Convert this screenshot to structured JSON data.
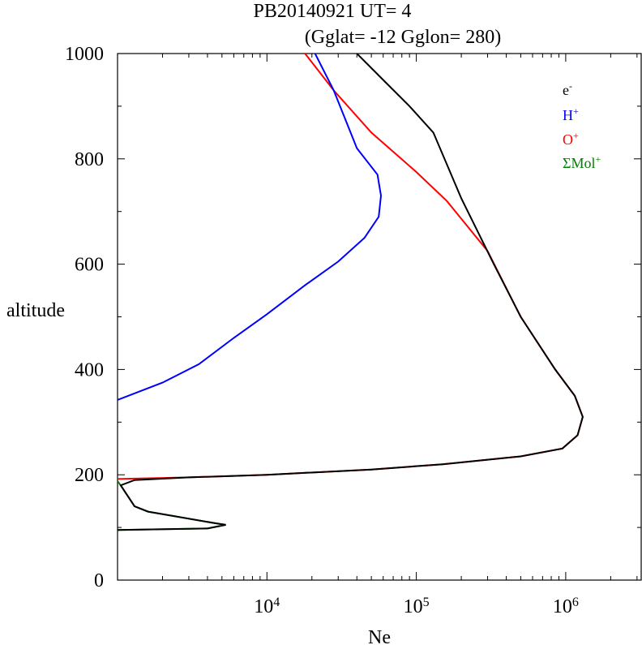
{
  "chart_data": {
    "type": "line",
    "title": "PB20140921   UT=  4",
    "subtitle": "(Gglat= -12   Gglon=  280)",
    "xlabel": "Ne",
    "ylabel": "altitude",
    "x_scale": "log",
    "xlim": [
      1000,
      3200000
    ],
    "ylim": [
      0,
      1000
    ],
    "y_ticks": [
      0,
      200,
      400,
      600,
      800,
      1000
    ],
    "x_ticks": [
      {
        "base": "10",
        "exp": "4",
        "value": 10000
      },
      {
        "base": "10",
        "exp": "5",
        "value": 100000
      },
      {
        "base": "10",
        "exp": "6",
        "value": 1000000
      }
    ],
    "grid": false,
    "legend_position": "top-right",
    "series": [
      {
        "name": "e",
        "sup": "-",
        "color": "#000000",
        "points": [
          [
            40000,
            1000
          ],
          [
            60000,
            950
          ],
          [
            90000,
            900
          ],
          [
            130000,
            850
          ],
          [
            200000,
            725
          ],
          [
            330000,
            600
          ],
          [
            500000,
            500
          ],
          [
            850000,
            400
          ],
          [
            1150000,
            350
          ],
          [
            1300000,
            310
          ],
          [
            1200000,
            275
          ],
          [
            950000,
            250
          ],
          [
            500000,
            235
          ],
          [
            150000,
            220
          ],
          [
            50000,
            210
          ],
          [
            10000,
            200
          ],
          [
            3000,
            195
          ],
          [
            1300,
            190
          ],
          [
            1050,
            180
          ],
          [
            1300,
            140
          ],
          [
            1600,
            130
          ],
          [
            4500,
            108
          ],
          [
            5300,
            105
          ],
          [
            4000,
            98
          ],
          [
            1000,
            95
          ]
        ]
      },
      {
        "name": "H",
        "sup": "+",
        "color": "#0000ff",
        "points": [
          [
            21000,
            1000
          ],
          [
            28000,
            930
          ],
          [
            40000,
            820
          ],
          [
            55000,
            770
          ],
          [
            58000,
            730
          ],
          [
            56000,
            690
          ],
          [
            45000,
            650
          ],
          [
            30000,
            605
          ],
          [
            18000,
            560
          ],
          [
            10000,
            505
          ],
          [
            6000,
            460
          ],
          [
            3500,
            410
          ],
          [
            2000,
            375
          ],
          [
            1000,
            342
          ]
        ]
      },
      {
        "name": "O",
        "sup": "+",
        "color": "#ff0000",
        "points": [
          [
            18000,
            1000
          ],
          [
            28000,
            930
          ],
          [
            50000,
            850
          ],
          [
            100000,
            775
          ],
          [
            160000,
            720
          ],
          [
            300000,
            625
          ],
          [
            500000,
            500
          ],
          [
            850000,
            400
          ],
          [
            1150000,
            350
          ],
          [
            1300000,
            310
          ],
          [
            1200000,
            275
          ],
          [
            950000,
            250
          ],
          [
            500000,
            235
          ],
          [
            150000,
            220
          ],
          [
            50000,
            210
          ],
          [
            10000,
            200
          ],
          [
            3000,
            195
          ],
          [
            1000,
            192
          ]
        ]
      },
      {
        "name": "ΣMol",
        "sup": "+",
        "color": "#008000",
        "points": [
          [
            1000,
            188
          ],
          [
            1050,
            180
          ],
          [
            1300,
            140
          ],
          [
            1600,
            130
          ],
          [
            4500,
            108
          ],
          [
            5300,
            105
          ],
          [
            4000,
            98
          ],
          [
            1000,
            95
          ]
        ]
      }
    ]
  }
}
